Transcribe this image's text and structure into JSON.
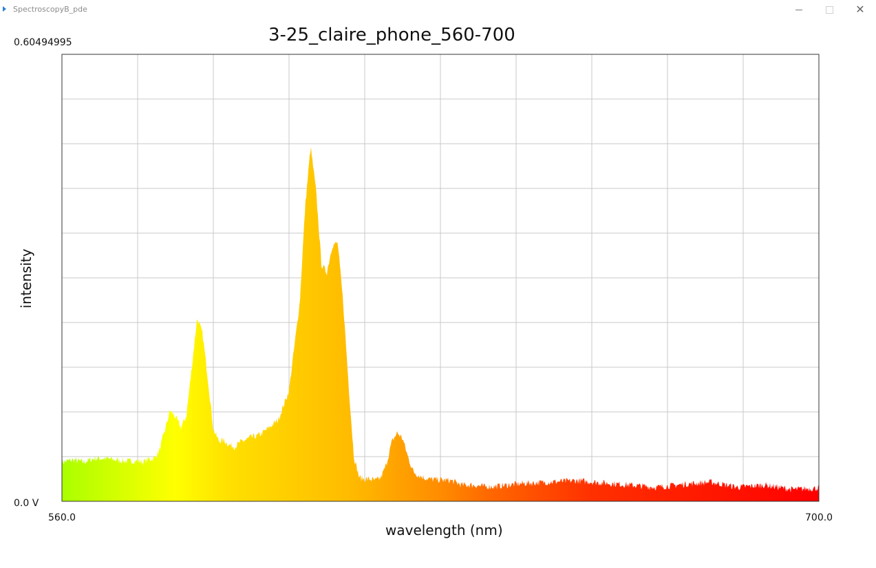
{
  "window": {
    "title": "SpectroscopyB_pde",
    "app_icon": "play-triangle-icon",
    "controls": {
      "minimize_icon": "minimize-icon",
      "maximize_icon": "maximize-icon",
      "close_icon": "close-icon",
      "close_glyph": "✕"
    }
  },
  "chart_data": {
    "type": "area",
    "title": "3-25_claire_phone_560-700",
    "xlabel": "wavelength (nm)",
    "ylabel": "intensity",
    "xlim": [
      560.0,
      700.0
    ],
    "ylim": [
      0.0,
      0.60494995
    ],
    "x_min_label": "560.0",
    "x_max_label": "700.0",
    "y_max_label": "0.60494995",
    "y_min_label": "0.0 V",
    "grid": true,
    "grid_divisions": {
      "x": 10,
      "y": 10
    },
    "fill": "wavelength-colored gradient (green→yellow→orange→red)",
    "gradient_colors": [
      "#aaff00",
      "#ffff00",
      "#ffcc00",
      "#ff8800",
      "#ff4400",
      "#ff0000"
    ],
    "x": [
      560,
      562,
      564,
      566,
      568,
      570,
      572,
      574,
      575,
      576,
      577,
      578,
      579,
      580,
      581,
      582,
      583,
      584,
      585,
      586,
      587,
      588,
      589,
      590,
      591,
      592,
      593,
      594,
      595,
      596,
      597,
      598,
      600,
      602,
      604,
      605,
      606,
      607,
      608,
      609,
      610,
      611,
      612,
      613,
      614,
      615,
      616,
      617,
      618,
      619,
      620,
      621,
      622,
      623,
      624,
      625,
      626,
      627,
      628,
      630,
      632,
      634,
      636,
      638,
      640,
      645,
      650,
      655,
      660,
      665,
      670,
      675,
      680,
      685,
      690,
      695,
      700
    ],
    "y": [
      0.053,
      0.056,
      0.053,
      0.058,
      0.058,
      0.056,
      0.054,
      0.055,
      0.053,
      0.057,
      0.058,
      0.068,
      0.095,
      0.123,
      0.114,
      0.1,
      0.115,
      0.18,
      0.248,
      0.227,
      0.165,
      0.097,
      0.082,
      0.082,
      0.076,
      0.074,
      0.08,
      0.083,
      0.087,
      0.088,
      0.092,
      0.098,
      0.11,
      0.15,
      0.27,
      0.4,
      0.48,
      0.42,
      0.32,
      0.31,
      0.346,
      0.35,
      0.27,
      0.16,
      0.06,
      0.032,
      0.03,
      0.03,
      0.028,
      0.032,
      0.05,
      0.08,
      0.093,
      0.085,
      0.06,
      0.04,
      0.035,
      0.032,
      0.03,
      0.029,
      0.028,
      0.022,
      0.022,
      0.02,
      0.02,
      0.024,
      0.026,
      0.028,
      0.025,
      0.022,
      0.019,
      0.023,
      0.026,
      0.019,
      0.022,
      0.016,
      0.018
    ]
  }
}
